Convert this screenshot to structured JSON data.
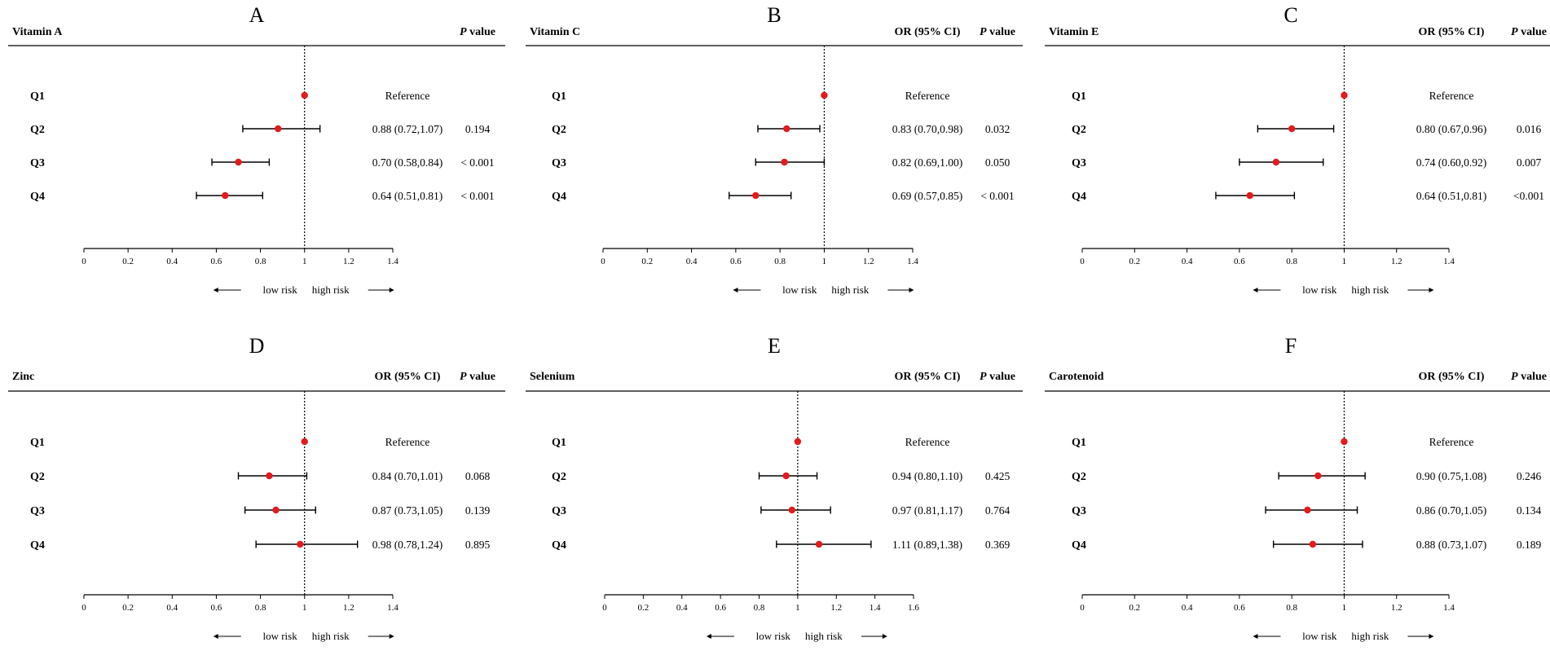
{
  "figure": {
    "legend": {
      "low": "low risk",
      "high": "high risk"
    },
    "colors": {
      "point": "#e41a1c",
      "line": "#000000"
    }
  },
  "chart_data": [
    {
      "type": "forest",
      "letter": "A",
      "title": "Vitamin A",
      "col_or": "",
      "col_p_italic": "P",
      "col_p_rest": "value",
      "xlim": [
        0,
        1.4
      ],
      "ticks": [
        0,
        0.2,
        0.4,
        0.6,
        0.8,
        1,
        1.2,
        1.4
      ],
      "tick_labels": [
        "0",
        "0.2",
        "0.4",
        "0.6",
        "0.8",
        "1",
        "1.2",
        "1.4"
      ],
      "ref_line": 1,
      "rows": [
        {
          "label": "Q1",
          "or": 1.0,
          "lo": null,
          "hi": null,
          "or_text": "Reference",
          "p_text": ""
        },
        {
          "label": "Q2",
          "or": 0.88,
          "lo": 0.72,
          "hi": 1.07,
          "or_text": "0.88 (0.72,1.07)",
          "p_text": "0.194"
        },
        {
          "label": "Q3",
          "or": 0.7,
          "lo": 0.58,
          "hi": 0.84,
          "or_text": "0.70 (0.58,0.84)",
          "p_text": "< 0.001"
        },
        {
          "label": "Q4",
          "or": 0.64,
          "lo": 0.51,
          "hi": 0.81,
          "or_text": "0.64 (0.51,0.81)",
          "p_text": "< 0.001"
        }
      ]
    },
    {
      "type": "forest",
      "letter": "B",
      "title": "Vitamin C",
      "col_or": "OR (95% CI)",
      "col_p_italic": "P",
      "col_p_rest": "value",
      "xlim": [
        0,
        1.4
      ],
      "ticks": [
        0,
        0.2,
        0.4,
        0.6,
        0.8,
        1,
        1.2,
        1.4
      ],
      "tick_labels": [
        "0",
        "0.2",
        "0.4",
        "0.6",
        "0.8",
        "1",
        "1.2",
        "1.4"
      ],
      "ref_line": 1,
      "rows": [
        {
          "label": "Q1",
          "or": 1.0,
          "lo": null,
          "hi": null,
          "or_text": "Reference",
          "p_text": ""
        },
        {
          "label": "Q2",
          "or": 0.83,
          "lo": 0.7,
          "hi": 0.98,
          "or_text": "0.83 (0.70,0.98)",
          "p_text": "0.032"
        },
        {
          "label": "Q3",
          "or": 0.82,
          "lo": 0.69,
          "hi": 1.0,
          "or_text": "0.82 (0.69,1.00)",
          "p_text": "0.050"
        },
        {
          "label": "Q4",
          "or": 0.69,
          "lo": 0.57,
          "hi": 0.85,
          "or_text": "0.69 (0.57,0.85)",
          "p_text": "< 0.001"
        }
      ]
    },
    {
      "type": "forest",
      "letter": "C",
      "title": "Vitamin E",
      "col_or": "OR (95% CI)",
      "col_p_italic": "P",
      "col_p_rest": "value",
      "xlim": [
        0,
        1.4
      ],
      "ticks": [
        0,
        0.2,
        0.4,
        0.6,
        0.8,
        1,
        1.2,
        1.4
      ],
      "tick_labels": [
        "0",
        "0.2",
        "0.4",
        "0.6",
        "0.8",
        "1",
        "1.2",
        "1.4"
      ],
      "ref_line": 1,
      "rows": [
        {
          "label": "Q1",
          "or": 1.0,
          "lo": null,
          "hi": null,
          "or_text": "Reference",
          "p_text": ""
        },
        {
          "label": "Q2",
          "or": 0.8,
          "lo": 0.67,
          "hi": 0.96,
          "or_text": "0.80 (0.67,0.96)",
          "p_text": "0.016"
        },
        {
          "label": "Q3",
          "or": 0.74,
          "lo": 0.6,
          "hi": 0.92,
          "or_text": "0.74 (0.60,0.92)",
          "p_text": "0.007"
        },
        {
          "label": "Q4",
          "or": 0.64,
          "lo": 0.51,
          "hi": 0.81,
          "or_text": "0.64 (0.51,0.81)",
          "p_text": "<0.001"
        }
      ]
    },
    {
      "type": "forest",
      "letter": "D",
      "title": "Zinc",
      "col_or": "OR (95% CI)",
      "col_p_italic": "P",
      "col_p_rest": "value",
      "xlim": [
        0,
        1.4
      ],
      "ticks": [
        0,
        0.2,
        0.4,
        0.6,
        0.8,
        1,
        1.2,
        1.4
      ],
      "tick_labels": [
        "0",
        "0.2",
        "0.4",
        "0.6",
        "0.8",
        "1",
        "1.2",
        "1.4"
      ],
      "ref_line": 1,
      "rows": [
        {
          "label": "Q1",
          "or": 1.0,
          "lo": null,
          "hi": null,
          "or_text": "Reference",
          "p_text": ""
        },
        {
          "label": "Q2",
          "or": 0.84,
          "lo": 0.7,
          "hi": 1.01,
          "or_text": "0.84 (0.70,1.01)",
          "p_text": "0.068"
        },
        {
          "label": "Q3",
          "or": 0.87,
          "lo": 0.73,
          "hi": 1.05,
          "or_text": "0.87 (0.73,1.05)",
          "p_text": "0.139"
        },
        {
          "label": "Q4",
          "or": 0.98,
          "lo": 0.78,
          "hi": 1.24,
          "or_text": "0.98 (0.78,1.24)",
          "p_text": "0.895"
        }
      ]
    },
    {
      "type": "forest",
      "letter": "E",
      "title": "Selenium",
      "col_or": "OR (95% CI)",
      "col_p_italic": "P",
      "col_p_rest": "value",
      "xlim": [
        0,
        1.6
      ],
      "ticks": [
        0,
        0.2,
        0.4,
        0.6,
        0.8,
        1,
        1.2,
        1.4,
        1.6
      ],
      "tick_labels": [
        "0",
        "0.2",
        "0.4",
        "0.6",
        "0.8",
        "1",
        "1.2",
        "1.4",
        "1.6"
      ],
      "ref_line": 1,
      "rows": [
        {
          "label": "Q1",
          "or": 1.0,
          "lo": null,
          "hi": null,
          "or_text": "Reference",
          "p_text": ""
        },
        {
          "label": "Q2",
          "or": 0.94,
          "lo": 0.8,
          "hi": 1.1,
          "or_text": "0.94 (0.80,1.10)",
          "p_text": "0.425"
        },
        {
          "label": "Q3",
          "or": 0.97,
          "lo": 0.81,
          "hi": 1.17,
          "or_text": "0.97 (0.81,1.17)",
          "p_text": "0.764"
        },
        {
          "label": "Q4",
          "or": 1.11,
          "lo": 0.89,
          "hi": 1.38,
          "or_text": "1.11 (0.89,1.38)",
          "p_text": "0.369"
        }
      ]
    },
    {
      "type": "forest",
      "letter": "F",
      "title": "Carotenoid",
      "col_or": "OR (95% CI)",
      "col_p_italic": "P",
      "col_p_rest": "value",
      "xlim": [
        0,
        1.4
      ],
      "ticks": [
        0,
        0.2,
        0.4,
        0.6,
        0.8,
        1,
        1.2,
        1.4
      ],
      "tick_labels": [
        "0",
        "0.2",
        "0.4",
        "0.6",
        "0.8",
        "1",
        "1.2",
        "1.4"
      ],
      "ref_line": 1,
      "rows": [
        {
          "label": "Q1",
          "or": 1.0,
          "lo": null,
          "hi": null,
          "or_text": "Reference",
          "p_text": ""
        },
        {
          "label": "Q2",
          "or": 0.9,
          "lo": 0.75,
          "hi": 1.08,
          "or_text": "0.90 (0.75,1.08)",
          "p_text": "0.246"
        },
        {
          "label": "Q3",
          "or": 0.86,
          "lo": 0.7,
          "hi": 1.05,
          "or_text": "0.86 (0.70,1.05)",
          "p_text": "0.134"
        },
        {
          "label": "Q4",
          "or": 0.88,
          "lo": 0.73,
          "hi": 1.07,
          "or_text": "0.88 (0.73,1.07)",
          "p_text": "0.189"
        }
      ]
    }
  ]
}
